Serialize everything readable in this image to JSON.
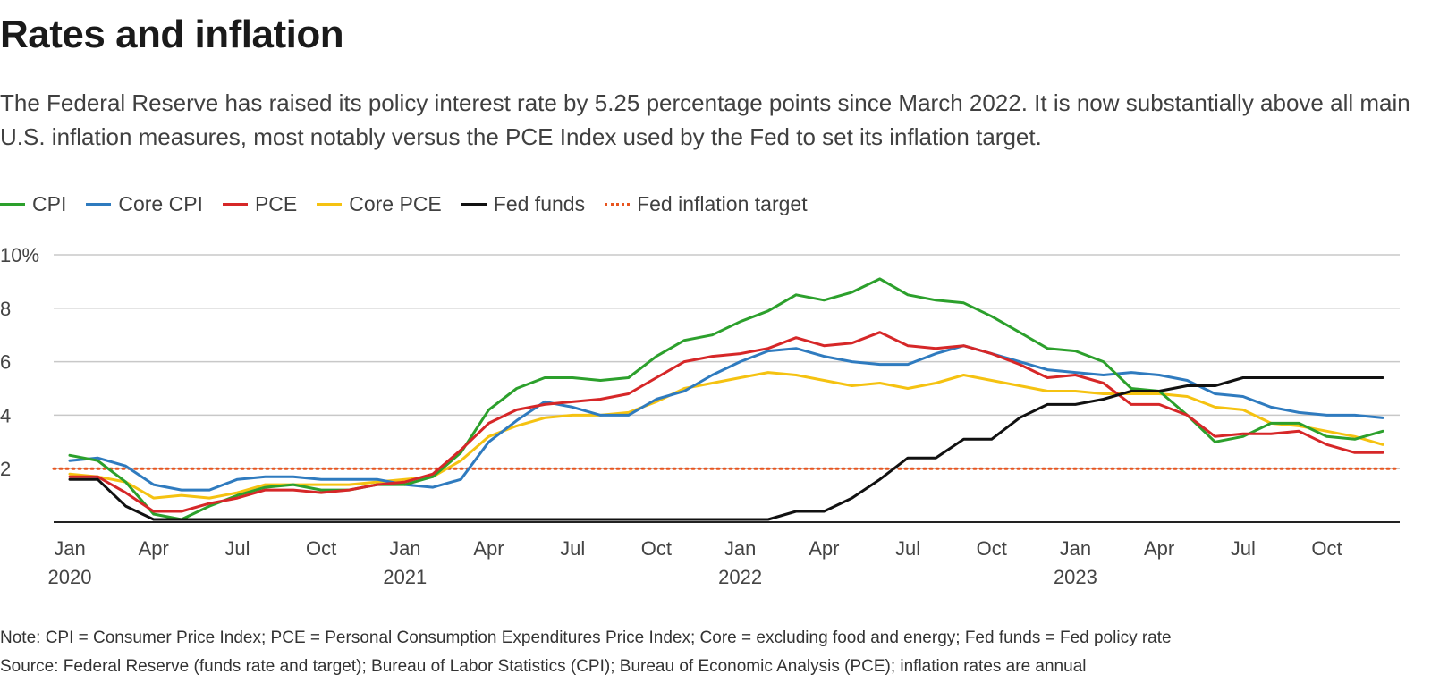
{
  "header": {
    "title": "Rates and inflation",
    "subtitle": "The Federal Reserve has raised its policy interest rate by 5.25 percentage points since March 2022. It is now substantially above all main U.S. inflation measures, most notably versus the PCE Index used by the Fed to set its inflation target."
  },
  "footer": {
    "note": "Note: CPI = Consumer Price Index; PCE = Personal Consumption Expenditures Price Index; Core = excluding food and energy; Fed funds = Fed policy rate",
    "source": "Source: Federal Reserve (funds rate and target); Bureau of Labor Statistics (CPI); Bureau of Economic Analysis (PCE); inflation rates are annual"
  },
  "chart_data": {
    "type": "line",
    "title": "Rates and inflation",
    "xlabel": "",
    "ylabel": "",
    "ylim": [
      0,
      10
    ],
    "yticks": [
      2,
      4,
      6,
      8,
      10
    ],
    "ytick_labels": [
      "2",
      "4",
      "6",
      "8",
      "10%"
    ],
    "x_months": [
      "2020-01",
      "2020-02",
      "2020-03",
      "2020-04",
      "2020-05",
      "2020-06",
      "2020-07",
      "2020-08",
      "2020-09",
      "2020-10",
      "2020-11",
      "2020-12",
      "2021-01",
      "2021-02",
      "2021-03",
      "2021-04",
      "2021-05",
      "2021-06",
      "2021-07",
      "2021-08",
      "2021-09",
      "2021-10",
      "2021-11",
      "2021-12",
      "2022-01",
      "2022-02",
      "2022-03",
      "2022-04",
      "2022-05",
      "2022-06",
      "2022-07",
      "2022-08",
      "2022-09",
      "2022-10",
      "2022-11",
      "2022-12",
      "2023-01",
      "2023-02",
      "2023-03",
      "2023-04",
      "2023-05",
      "2023-06",
      "2023-07",
      "2023-08",
      "2023-09",
      "2023-10",
      "2023-11",
      "2023-12"
    ],
    "xticks": [
      {
        "month_index": 0,
        "label": "Jan",
        "year": "2020"
      },
      {
        "month_index": 3,
        "label": "Apr",
        "year": ""
      },
      {
        "month_index": 6,
        "label": "Jul",
        "year": ""
      },
      {
        "month_index": 9,
        "label": "Oct",
        "year": ""
      },
      {
        "month_index": 12,
        "label": "Jan",
        "year": "2021"
      },
      {
        "month_index": 15,
        "label": "Apr",
        "year": ""
      },
      {
        "month_index": 18,
        "label": "Jul",
        "year": ""
      },
      {
        "month_index": 21,
        "label": "Oct",
        "year": ""
      },
      {
        "month_index": 24,
        "label": "Jan",
        "year": "2022"
      },
      {
        "month_index": 27,
        "label": "Apr",
        "year": ""
      },
      {
        "month_index": 30,
        "label": "Jul",
        "year": ""
      },
      {
        "month_index": 33,
        "label": "Oct",
        "year": ""
      },
      {
        "month_index": 36,
        "label": "Jan",
        "year": "2023"
      },
      {
        "month_index": 39,
        "label": "Apr",
        "year": ""
      },
      {
        "month_index": 42,
        "label": "Jul",
        "year": ""
      },
      {
        "month_index": 45,
        "label": "Oct",
        "year": ""
      }
    ],
    "target": {
      "name": "Fed inflation target",
      "value": 2,
      "color": "#e8551f"
    },
    "series": [
      {
        "name": "CPI",
        "color": "#2ca02c",
        "values": [
          2.5,
          2.3,
          1.5,
          0.3,
          0.1,
          0.6,
          1.0,
          1.3,
          1.4,
          1.2,
          1.2,
          1.4,
          1.4,
          1.7,
          2.6,
          4.2,
          5.0,
          5.4,
          5.4,
          5.3,
          5.4,
          6.2,
          6.8,
          7.0,
          7.5,
          7.9,
          8.5,
          8.3,
          8.6,
          9.1,
          8.5,
          8.3,
          8.2,
          7.7,
          7.1,
          6.5,
          6.4,
          6.0,
          5.0,
          4.9,
          4.0,
          3.0,
          3.2,
          3.7,
          3.7,
          3.2,
          3.1,
          3.4
        ]
      },
      {
        "name": "Core CPI",
        "color": "#2f7bbf",
        "values": [
          2.3,
          2.4,
          2.1,
          1.4,
          1.2,
          1.2,
          1.6,
          1.7,
          1.7,
          1.6,
          1.6,
          1.6,
          1.4,
          1.3,
          1.6,
          3.0,
          3.8,
          4.5,
          4.3,
          4.0,
          4.0,
          4.6,
          4.9,
          5.5,
          6.0,
          6.4,
          6.5,
          6.2,
          6.0,
          5.9,
          5.9,
          6.3,
          6.6,
          6.3,
          6.0,
          5.7,
          5.6,
          5.5,
          5.6,
          5.5,
          5.3,
          4.8,
          4.7,
          4.3,
          4.1,
          4.0,
          4.0,
          3.9
        ]
      },
      {
        "name": "PCE",
        "color": "#d62728",
        "values": [
          1.7,
          1.7,
          1.1,
          0.4,
          0.4,
          0.7,
          0.9,
          1.2,
          1.2,
          1.1,
          1.2,
          1.4,
          1.5,
          1.8,
          2.7,
          3.7,
          4.2,
          4.4,
          4.5,
          4.6,
          4.8,
          5.4,
          6.0,
          6.2,
          6.3,
          6.5,
          6.9,
          6.6,
          6.7,
          7.1,
          6.6,
          6.5,
          6.6,
          6.3,
          5.9,
          5.4,
          5.5,
          5.2,
          4.4,
          4.4,
          4.0,
          3.2,
          3.3,
          3.3,
          3.4,
          2.9,
          2.6,
          2.6
        ]
      },
      {
        "name": "Core PCE",
        "color": "#f5c211",
        "values": [
          1.8,
          1.7,
          1.5,
          0.9,
          1.0,
          0.9,
          1.1,
          1.4,
          1.4,
          1.4,
          1.4,
          1.5,
          1.6,
          1.7,
          2.3,
          3.2,
          3.6,
          3.9,
          4.0,
          4.0,
          4.1,
          4.5,
          5.0,
          5.2,
          5.4,
          5.6,
          5.5,
          5.3,
          5.1,
          5.2,
          5.0,
          5.2,
          5.5,
          5.3,
          5.1,
          4.9,
          4.9,
          4.8,
          4.8,
          4.8,
          4.7,
          4.3,
          4.2,
          3.7,
          3.6,
          3.4,
          3.2,
          2.9
        ]
      },
      {
        "name": "Fed funds",
        "color": "#111111",
        "values": [
          1.6,
          1.6,
          0.6,
          0.1,
          0.1,
          0.1,
          0.1,
          0.1,
          0.1,
          0.1,
          0.1,
          0.1,
          0.1,
          0.1,
          0.1,
          0.1,
          0.1,
          0.1,
          0.1,
          0.1,
          0.1,
          0.1,
          0.1,
          0.1,
          0.1,
          0.1,
          0.4,
          0.4,
          0.9,
          1.6,
          2.4,
          2.4,
          3.1,
          3.1,
          3.9,
          4.4,
          4.4,
          4.6,
          4.9,
          4.9,
          5.1,
          5.1,
          5.4,
          5.4,
          5.4,
          5.4,
          5.4,
          5.4
        ]
      }
    ]
  }
}
